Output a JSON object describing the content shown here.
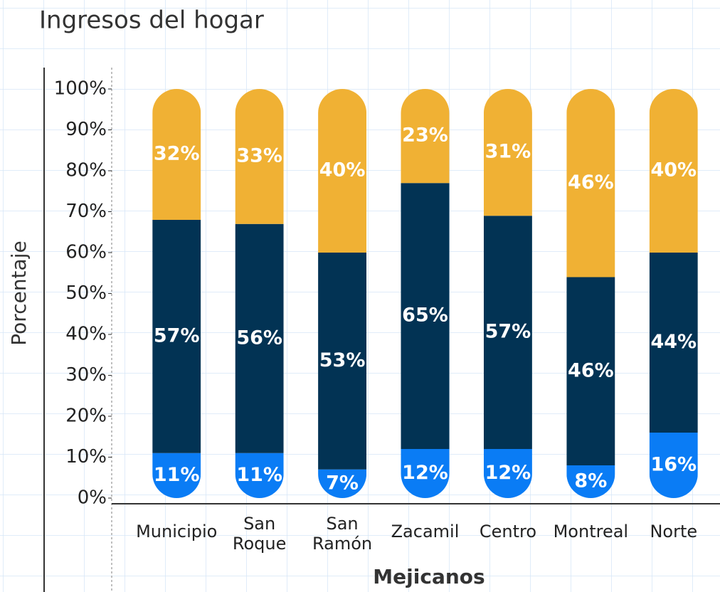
{
  "chart_data": {
    "type": "stacked_bar",
    "title": "Ingresos del hogar",
    "y_label": "Porcentaje",
    "x_label": "Mejicanos",
    "categories": [
      "Municipio",
      "San Roque",
      "San Ramón",
      "Zacamil",
      "Centro",
      "Montreal",
      "Norte"
    ],
    "series": [
      {
        "color": "#0a7cf5",
        "values": [
          11,
          11,
          7,
          12,
          12,
          8,
          16
        ],
        "value_labels": [
          "11%",
          "11%",
          "7%",
          "12%",
          "12%",
          "8%",
          "16%"
        ]
      },
      {
        "color": "#023354",
        "values": [
          57,
          56,
          53,
          65,
          57,
          46,
          44
        ],
        "value_labels": [
          "57%",
          "56%",
          "53%",
          "65%",
          "57%",
          "46%",
          "44%"
        ]
      },
      {
        "color": "#f0b134",
        "values": [
          32,
          33,
          40,
          23,
          31,
          46,
          40
        ],
        "value_labels": [
          "32%",
          "33%",
          "40%",
          "23%",
          "31%",
          "46%",
          "40%"
        ]
      }
    ],
    "ylim": [
      0,
      100
    ],
    "yticks": [
      {
        "value": 0,
        "label": "0%"
      },
      {
        "value": 10,
        "label": "10%"
      },
      {
        "value": 20,
        "label": "20%"
      },
      {
        "value": 30,
        "label": "30%"
      },
      {
        "value": 40,
        "label": "40%"
      },
      {
        "value": 50,
        "label": "50%"
      },
      {
        "value": 60,
        "label": "60%"
      },
      {
        "value": 70,
        "label": "70%"
      },
      {
        "value": 80,
        "label": "80%"
      },
      {
        "value": 90,
        "label": "90%"
      },
      {
        "value": 100,
        "label": "100%"
      }
    ]
  }
}
